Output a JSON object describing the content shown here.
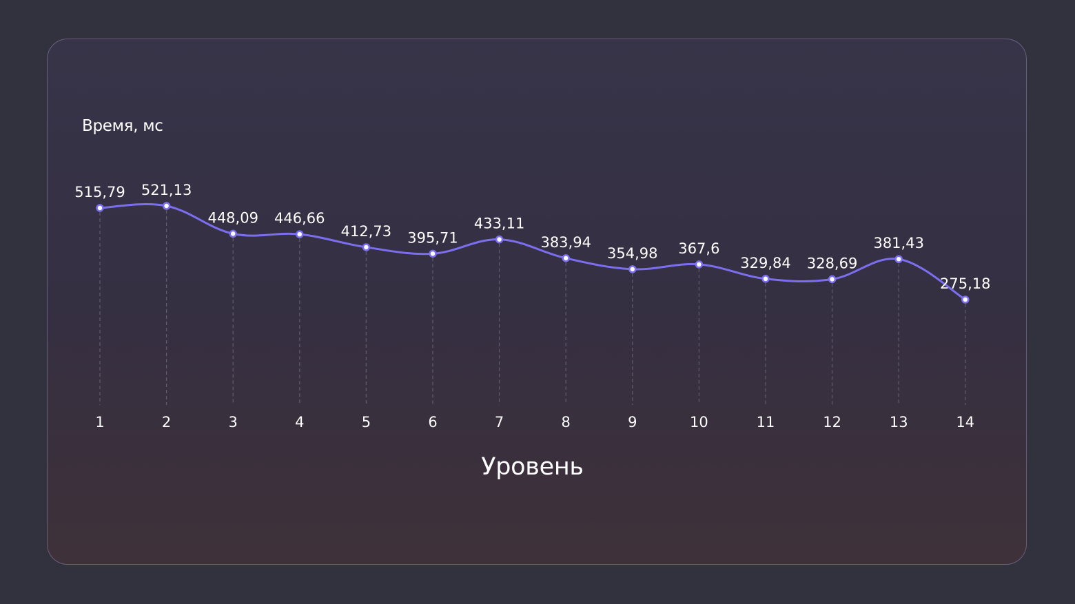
{
  "chart_data": {
    "type": "line",
    "xlabel": "Уровень",
    "ylabel": "Время, мс",
    "categories": [
      "1",
      "2",
      "3",
      "4",
      "5",
      "6",
      "7",
      "8",
      "9",
      "10",
      "11",
      "12",
      "13",
      "14"
    ],
    "series": [
      {
        "values": [
          515.79,
          521.13,
          448.09,
          446.66,
          412.73,
          395.71,
          433.11,
          383.94,
          354.98,
          367.6,
          329.84,
          328.69,
          381.43,
          275.18
        ],
        "labels": [
          "515,79",
          "521,13",
          "448,09",
          "446,66",
          "412,73",
          "395,71",
          "433,11",
          "383,94",
          "354,98",
          "367,6",
          "329,84",
          "328,69",
          "381,43",
          "275,18"
        ]
      }
    ],
    "smooth": true,
    "markers": "circle",
    "grid": "vertical dashed drop lines",
    "colors": {
      "line": "#7b6ff0",
      "marker_fill": "#ffffff",
      "dropline": "#5d5a6a",
      "text": "#ffffff",
      "card_border": "#8f88b6",
      "background": "#31323e"
    }
  }
}
